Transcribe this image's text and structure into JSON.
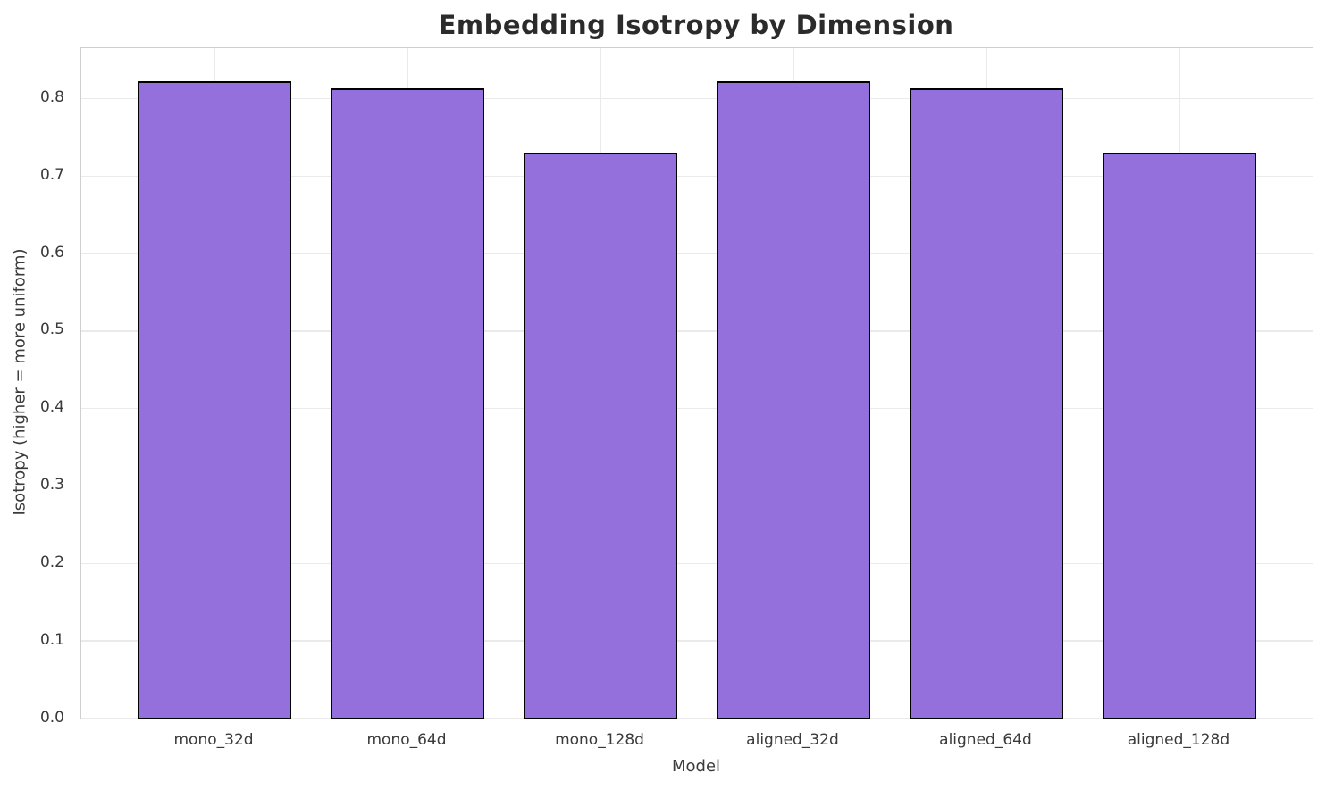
{
  "chart_data": {
    "type": "bar",
    "title": "Embedding Isotropy by Dimension",
    "xlabel": "Model",
    "ylabel": "Isotropy (higher = more uniform)",
    "categories": [
      "mono_32d",
      "mono_64d",
      "mono_128d",
      "aligned_32d",
      "aligned_64d",
      "aligned_128d"
    ],
    "values": [
      0.822,
      0.813,
      0.73,
      0.822,
      0.813,
      0.73
    ],
    "ytick_labels": [
      "0.0",
      "0.1",
      "0.2",
      "0.3",
      "0.4",
      "0.5",
      "0.6",
      "0.7",
      "0.8"
    ],
    "yticks": [
      0.0,
      0.1,
      0.2,
      0.3,
      0.4,
      0.5,
      0.6,
      0.7,
      0.8
    ],
    "ylim": [
      0,
      0.865
    ],
    "xlim": [
      -0.69,
      5.69
    ],
    "bar_width": 0.8,
    "grid": true,
    "legend_position": "none",
    "colors": {
      "bar_fill": "#9370db",
      "bar_edge": "#000000",
      "grid": "#eaeaea",
      "spine": "#cfcfcf",
      "title_text": "#2b2b2b",
      "tick_text": "#3a3a3a",
      "background": "#ffffff"
    }
  }
}
